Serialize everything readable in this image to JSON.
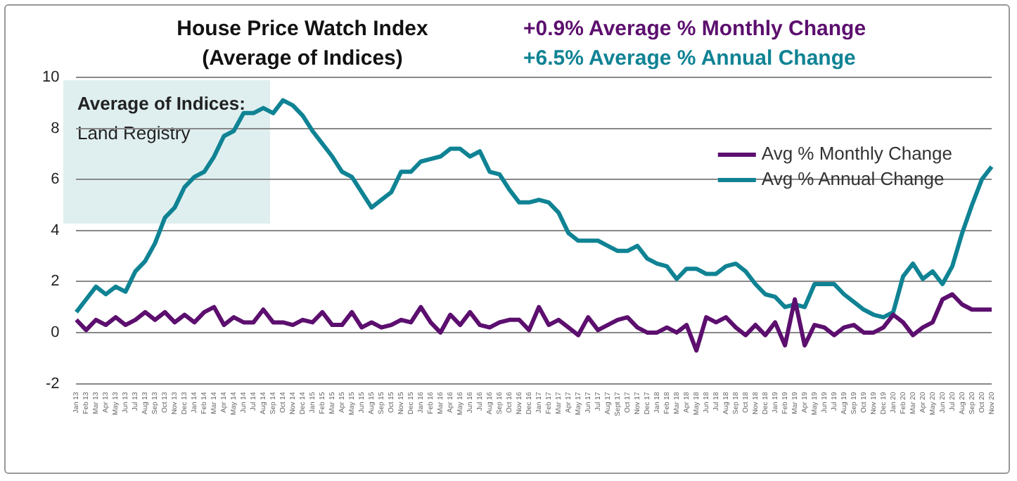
{
  "chart_data": {
    "type": "line",
    "title": "House Price Watch Index",
    "subtitle": "(Average of Indices)",
    "annotations": [
      "+0.9% Average % Monthly Change",
      "+6.5% Average % Annual Change",
      "Average of Indices:",
      "Land Registry"
    ],
    "categories": [
      "Jan 13",
      "Feb 13",
      "Mar 13",
      "Apr 13",
      "May 13",
      "Jun 13",
      "Jul 13",
      "Aug 13",
      "Sep 13",
      "Oct 13",
      "Nov 13",
      "Dec 13",
      "Jan 14",
      "Feb 14",
      "Mar 14",
      "Apr 14",
      "May 14",
      "Jun 14",
      "Jul 14",
      "Aug 14",
      "Sep 14",
      "Oct 14",
      "Nov 14",
      "Dec 14",
      "Jan 15",
      "Feb 15",
      "Mar 15",
      "Apr 15",
      "May 15",
      "Jun 15",
      "Aug 15",
      "Sep 15",
      "Oct 15",
      "Nov 15",
      "Dec 15",
      "Jan 16",
      "Feb 16",
      "Mar 16",
      "Apr 16",
      "May 16",
      "Jun 16",
      "Jul 16",
      "Aug 16",
      "Sep 16",
      "Oct 16",
      "Nov 16",
      "Dec 16",
      "Jan 17",
      "Feb 17",
      "Mar 17",
      "Apr 17",
      "May 17",
      "Jun 17",
      "Jul 17",
      "Aug 17",
      "Sept 17",
      "Oct 17",
      "Nov 17",
      "Dec 17",
      "Jan 18",
      "Feb 18",
      "Mar 18",
      "Apr 18",
      "May 18",
      "Jun 18",
      "Jul 18",
      "Aug 18",
      "Sep 18",
      "Oct 18",
      "Nov 18",
      "Dec 18",
      "Jan 19",
      "Feb 19",
      "Mar 19",
      "Apr 19",
      "May 19",
      "Jun 19",
      "Jul 19",
      "Aug 19",
      "Sep 19",
      "Oct 19",
      "Nov 19",
      "Dec 19",
      "Jan 20",
      "Feb 20",
      "Mar 20",
      "Apr 20",
      "May 20",
      "Jun 20",
      "Jul 20",
      "Aug 20",
      "Sep 20",
      "Oct 20",
      "Nov 20"
    ],
    "series": [
      {
        "name": "Avg % Monthly Change",
        "color": "#5c0f6e",
        "values": [
          0.5,
          0.1,
          0.5,
          0.3,
          0.6,
          0.3,
          0.5,
          0.8,
          0.5,
          0.8,
          0.4,
          0.7,
          0.4,
          0.8,
          1.0,
          0.3,
          0.6,
          0.4,
          0.4,
          0.9,
          0.4,
          0.4,
          0.3,
          0.5,
          0.4,
          0.8,
          0.3,
          0.3,
          0.8,
          0.2,
          0.4,
          0.2,
          0.3,
          0.5,
          0.4,
          1.0,
          0.4,
          0.0,
          0.7,
          0.3,
          0.8,
          0.3,
          0.2,
          0.4,
          0.5,
          0.5,
          0.1,
          1.0,
          0.3,
          0.5,
          0.2,
          -0.1,
          0.6,
          0.1,
          0.3,
          0.5,
          0.6,
          0.2,
          0.0,
          0.0,
          0.2,
          0.0,
          0.3,
          -0.7,
          0.6,
          0.4,
          0.6,
          0.2,
          -0.1,
          0.3,
          -0.1,
          0.4,
          -0.5,
          1.3,
          -0.5,
          0.3,
          0.2,
          -0.1,
          0.2,
          0.3,
          0.0,
          0.0,
          0.2,
          0.7,
          0.4,
          -0.1,
          0.2,
          0.4,
          1.3,
          1.5,
          1.1,
          0.9,
          0.9,
          0.9
        ]
      },
      {
        "name": "Avg % Annual Change",
        "color": "#0f8394",
        "values": [
          0.8,
          1.3,
          1.8,
          1.5,
          1.8,
          1.6,
          2.4,
          2.8,
          3.5,
          4.5,
          4.9,
          5.7,
          6.1,
          6.3,
          6.9,
          7.7,
          7.9,
          8.6,
          8.6,
          8.8,
          8.6,
          9.1,
          8.9,
          8.5,
          7.9,
          7.4,
          6.9,
          6.3,
          6.1,
          5.5,
          4.9,
          5.2,
          5.5,
          6.3,
          6.3,
          6.7,
          6.8,
          6.9,
          7.2,
          7.2,
          6.9,
          7.1,
          6.3,
          6.2,
          5.6,
          5.1,
          5.1,
          5.2,
          5.1,
          4.7,
          3.9,
          3.6,
          3.6,
          3.6,
          3.4,
          3.2,
          3.2,
          3.4,
          2.9,
          2.7,
          2.6,
          2.1,
          2.5,
          2.5,
          2.3,
          2.3,
          2.6,
          2.7,
          2.4,
          1.9,
          1.5,
          1.4,
          1.0,
          1.1,
          1.0,
          1.9,
          1.9,
          1.9,
          1.5,
          1.2,
          0.9,
          0.7,
          0.6,
          0.8,
          2.2,
          2.7,
          2.1,
          2.4,
          1.9,
          2.6,
          3.9,
          5.0,
          6.0,
          6.5
        ]
      }
    ],
    "ylim": [
      -2,
      10
    ],
    "yticks": [
      -2,
      0,
      2,
      4,
      6,
      8,
      10
    ],
    "grid": "y",
    "legend": "top right",
    "marker": "none",
    "line_style": "solid"
  }
}
